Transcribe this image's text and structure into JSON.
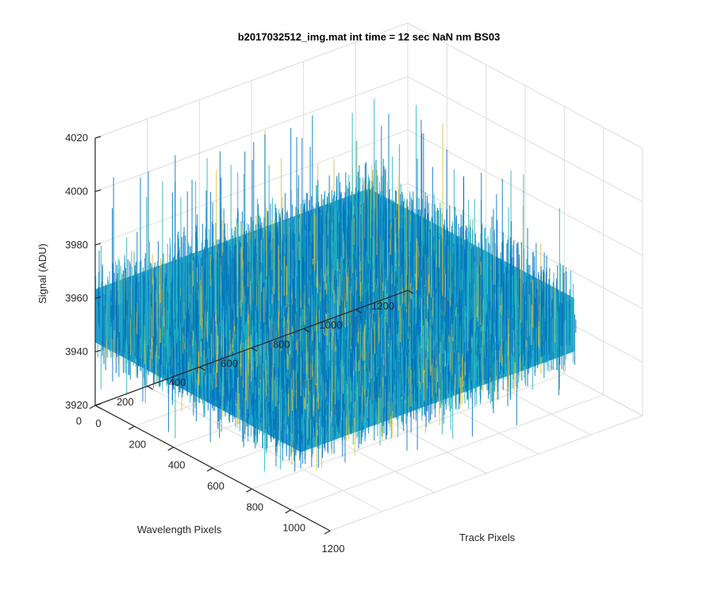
{
  "chart_data": {
    "type": "surface",
    "title": "b2017032512_img.mat int time = 12 sec  NaN nm BS03",
    "xlabel": "Track Pixels",
    "ylabel": "Wavelength Pixels",
    "zlabel": "Signal (ADU)",
    "xlim": [
      0,
      1200
    ],
    "ylim": [
      0,
      1200
    ],
    "zlim": [
      3920,
      4020
    ],
    "x_ticks": [
      0,
      200,
      400,
      600,
      800,
      1000,
      1200
    ],
    "y_ticks": [
      0,
      200,
      400,
      600,
      800,
      1000,
      1200
    ],
    "z_ticks": [
      3920,
      3940,
      3960,
      3980,
      4000,
      4020
    ],
    "x_tick_labels": [
      "0",
      "200",
      "400",
      "600",
      "800",
      "1000",
      "1200"
    ],
    "y_tick_labels": [
      "0",
      "200",
      "400",
      "600",
      "800",
      "1000",
      "1200"
    ],
    "z_tick_labels": [
      "3920",
      "3940",
      "3960",
      "3980",
      "4000",
      "4020"
    ],
    "data_extent": {
      "x": [
        1,
        1050
      ],
      "y": [
        1,
        1050
      ]
    },
    "signal_mean": 3952,
    "signal_noise_range": [
      3935,
      3975
    ],
    "signal_spike_range": [
      3922,
      4008
    ],
    "grid": true,
    "colormap": "parula",
    "colors": {
      "low": "#0072bd",
      "mid": "#21b3c4",
      "high": "#d9c340"
    }
  }
}
